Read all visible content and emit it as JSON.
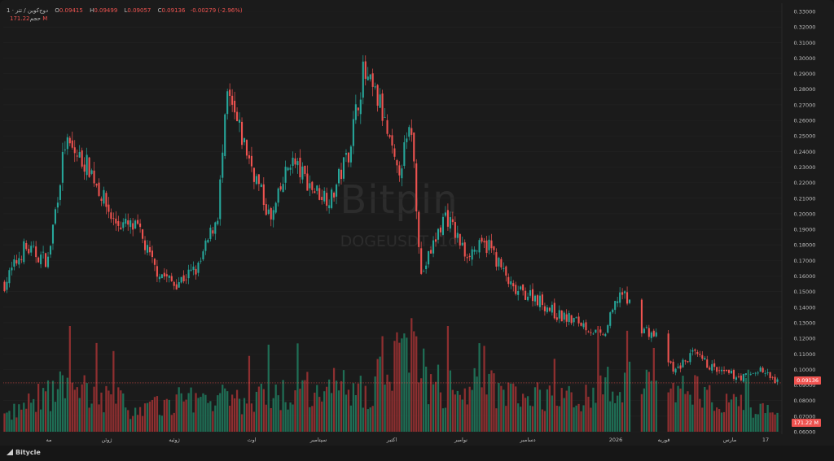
{
  "legend": {
    "symbol": "دوج‌کوین / تتر · 1",
    "open_label": "O",
    "open": "0.09415",
    "high_label": "H",
    "high": "0.09499",
    "low_label": "L",
    "low": "0.09057",
    "close_label": "C",
    "close": "0.09136",
    "change": "-0.00279 (-2.96%)",
    "volume_label": "حجم",
    "volume": "171.22 M"
  },
  "watermark": {
    "brand": "Bitpin",
    "ticker": "DOGEUSDT, 1d"
  },
  "footer": {
    "brand": "Bitycle"
  },
  "colors": {
    "up": "#26a69a",
    "down": "#ef5350",
    "up_vol": "#1f6e55",
    "down_vol": "#8e2f30",
    "background": "#1b1b1b"
  },
  "chart_data": {
    "type": "candlestick",
    "y_axis_ticks": [
      "0.06000",
      "0.07000",
      "0.08000",
      "0.09000",
      "0.10000",
      "0.11000",
      "0.12000",
      "0.13000",
      "0.14000",
      "0.15000",
      "0.16000",
      "0.17000",
      "0.18000",
      "0.19000",
      "0.20000",
      "0.21000",
      "0.22000",
      "0.23000",
      "0.24000",
      "0.25000",
      "0.26000",
      "0.27000",
      "0.28000",
      "0.29000",
      "0.30000",
      "0.31000",
      "0.32000",
      "0.33000"
    ],
    "ylim": [
      0.06,
      0.33
    ],
    "x_axis_ticks": [
      "مه",
      "ژوئن",
      "ژوئیه",
      "اوت",
      "سپتامبر",
      "اکتبر",
      "نوامبر",
      "دسامبر",
      "2026",
      "فوریه",
      "مارس",
      "17"
    ],
    "last_price": "0.09136",
    "last_price_value": 0.09136,
    "last_volume": "171.22 M",
    "candles": 320,
    "close_path": [
      [
        0,
        0.155
      ],
      [
        8,
        0.178
      ],
      [
        18,
        0.17
      ],
      [
        25,
        0.245
      ],
      [
        35,
        0.23
      ],
      [
        45,
        0.195
      ],
      [
        55,
        0.19
      ],
      [
        62,
        0.165
      ],
      [
        70,
        0.155
      ],
      [
        80,
        0.165
      ],
      [
        88,
        0.2
      ],
      [
        92,
        0.275
      ],
      [
        100,
        0.24
      ],
      [
        110,
        0.195
      ],
      [
        118,
        0.235
      ],
      [
        128,
        0.215
      ],
      [
        135,
        0.21
      ],
      [
        142,
        0.24
      ],
      [
        148,
        0.29
      ],
      [
        155,
        0.27
      ],
      [
        162,
        0.225
      ],
      [
        168,
        0.255
      ],
      [
        172,
        0.16
      ],
      [
        182,
        0.2
      ],
      [
        190,
        0.175
      ],
      [
        200,
        0.18
      ],
      [
        210,
        0.15
      ],
      [
        218,
        0.148
      ],
      [
        228,
        0.135
      ],
      [
        238,
        0.13
      ],
      [
        247,
        0.12
      ],
      [
        254,
        0.15
      ],
      [
        259,
        0.14
      ],
      [
        262,
        0.128
      ],
      [
        270,
        0.12
      ],
      [
        276,
        0.098
      ],
      [
        284,
        0.11
      ],
      [
        295,
        0.098
      ],
      [
        305,
        0.095
      ],
      [
        312,
        0.1
      ],
      [
        319,
        0.091
      ]
    ],
    "gaps": [
      [
        259,
        262
      ],
      [
        270,
        273
      ]
    ],
    "volume_path": [
      [
        0,
        0.15
      ],
      [
        24,
        0.45
      ],
      [
        44,
        0.35
      ],
      [
        55,
        0.2
      ],
      [
        80,
        0.35
      ],
      [
        100,
        0.3
      ],
      [
        132,
        0.45
      ],
      [
        150,
        0.4
      ],
      [
        169,
        0.95
      ],
      [
        176,
        0.4
      ],
      [
        200,
        0.45
      ],
      [
        230,
        0.3
      ],
      [
        255,
        0.5
      ],
      [
        290,
        0.4
      ],
      [
        319,
        0.15
      ]
    ]
  }
}
